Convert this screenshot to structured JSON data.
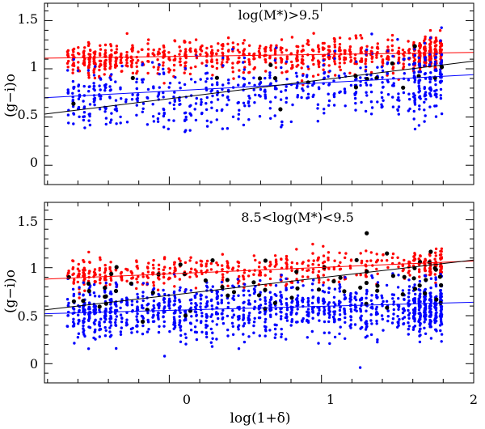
{
  "colors": {
    "red": "#ff0000",
    "blue": "#0000ff",
    "black": "#000000"
  },
  "chart_data": [
    {
      "type": "scatter",
      "panel": "top",
      "annotation": "log(M*)>9.5",
      "xlabel": "",
      "ylabel": "(g−i)o",
      "xlim": [
        -0.82,
        2.0
      ],
      "ylim": [
        -0.2,
        1.68
      ],
      "xticks": [
        0,
        1,
        2
      ],
      "xtick_labels": false,
      "yticks": [
        0,
        0.5,
        1,
        1.5
      ],
      "ytick_labels": [
        "0",
        "0.5",
        "1",
        "1.5"
      ],
      "grid": false,
      "series": [
        {
          "name": "red population",
          "color": "#ff0000",
          "n": 900,
          "mean_at_x0": 1.12,
          "slope": 0.02,
          "scatter": 0.09
        },
        {
          "name": "blue population",
          "color": "#0000ff",
          "n": 640,
          "mean_at_x0": 0.72,
          "slope": 0.09,
          "scatter": 0.18
        },
        {
          "name": "black population",
          "color": "#000000",
          "n": 18,
          "mean_at_x0": 0.9,
          "slope": 0.0,
          "scatter": 0.12
        }
      ],
      "fits": [
        {
          "name": "red fit",
          "color": "#ff0000",
          "x": [
            -0.82,
            2.0
          ],
          "y": [
            1.11,
            1.17
          ]
        },
        {
          "name": "blue fit",
          "color": "#0000ff",
          "x": [
            -0.82,
            2.0
          ],
          "y": [
            0.7,
            0.94
          ]
        },
        {
          "name": "black fit",
          "color": "#000000",
          "x": [
            -0.82,
            2.0
          ],
          "y": [
            0.53,
            1.08
          ]
        }
      ]
    },
    {
      "type": "scatter",
      "panel": "bottom",
      "annotation": "8.5<log(M*)<9.5",
      "xlabel": "log(1+δ)",
      "ylabel": "(g−i)o",
      "xlim": [
        -0.82,
        2.0
      ],
      "ylim": [
        -0.2,
        1.68
      ],
      "xticks": [
        0,
        1,
        2
      ],
      "xtick_labels": [
        "0",
        "1",
        "2"
      ],
      "yticks": [
        0,
        0.5,
        1,
        1.5
      ],
      "ytick_labels": [
        "0",
        "0.5",
        "1",
        "1.5"
      ],
      "grid": false,
      "series": [
        {
          "name": "red population",
          "color": "#ff0000",
          "n": 520,
          "mean_at_x0": 0.95,
          "slope": 0.05,
          "scatter": 0.08
        },
        {
          "name": "blue population",
          "color": "#0000ff",
          "n": 1300,
          "mean_at_x0": 0.55,
          "slope": 0.02,
          "scatter": 0.14
        },
        {
          "name": "black population",
          "color": "#000000",
          "n": 70,
          "mean_at_x0": 0.8,
          "slope": 0.05,
          "scatter": 0.17
        }
      ],
      "fits": [
        {
          "name": "red fit",
          "color": "#ff0000",
          "x": [
            -0.82,
            2.0
          ],
          "y": [
            0.88,
            1.07
          ]
        },
        {
          "name": "blue fit",
          "color": "#0000ff",
          "x": [
            -0.82,
            2.0
          ],
          "y": [
            0.52,
            0.64
          ]
        },
        {
          "name": "black fit",
          "color": "#000000",
          "x": [
            -0.82,
            2.0
          ],
          "y": [
            0.56,
            1.08
          ]
        }
      ]
    }
  ]
}
